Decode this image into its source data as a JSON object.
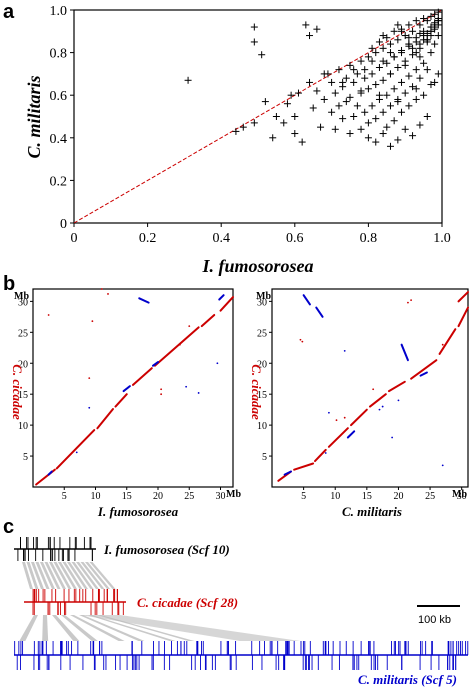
{
  "panels": {
    "a": "a",
    "b": "b",
    "c": "c"
  },
  "chart_data": [
    {
      "type": "scatter",
      "panel": "a",
      "title": "",
      "xlabel": "I. fumosorosea",
      "ylabel": "C. militaris",
      "xlim": [
        0,
        1.0
      ],
      "ylim": [
        0,
        1.0
      ],
      "xticks": [
        "0",
        "0.2",
        "0.4",
        "0.6",
        "0.8",
        "1.0"
      ],
      "yticks": [
        "0",
        "0.2",
        "0.4",
        "0.6",
        "0.8",
        "1.0"
      ],
      "marker": "plus",
      "color": "#000000",
      "diagonal_line": {
        "from": [
          0,
          0
        ],
        "to": [
          1,
          1
        ],
        "color": "#cc0000",
        "style": "dashed"
      },
      "grid": false,
      "x": [
        0.31,
        0.44,
        0.46,
        0.49,
        0.49,
        0.49,
        0.51,
        0.52,
        0.54,
        0.55,
        0.57,
        0.58,
        0.59,
        0.6,
        0.6,
        0.61,
        0.62,
        0.63,
        0.64,
        0.64,
        0.65,
        0.66,
        0.66,
        0.67,
        0.68,
        0.69,
        0.7,
        0.7,
        0.71,
        0.71,
        0.72,
        0.72,
        0.73,
        0.73,
        0.74,
        0.74,
        0.75,
        0.75,
        0.75,
        0.76,
        0.76,
        0.77,
        0.77,
        0.78,
        0.78,
        0.78,
        0.79,
        0.79,
        0.8,
        0.8,
        0.8,
        0.81,
        0.81,
        0.81,
        0.82,
        0.82,
        0.82,
        0.83,
        0.83,
        0.83,
        0.84,
        0.84,
        0.84,
        0.85,
        0.85,
        0.85,
        0.86,
        0.86,
        0.86,
        0.87,
        0.87,
        0.87,
        0.88,
        0.88,
        0.88,
        0.89,
        0.89,
        0.89,
        0.9,
        0.9,
        0.9,
        0.91,
        0.91,
        0.91,
        0.92,
        0.92,
        0.92,
        0.93,
        0.93,
        0.93,
        0.94,
        0.94,
        0.94,
        0.95,
        0.95,
        0.95,
        0.96,
        0.96,
        0.96,
        0.97,
        0.97,
        0.97,
        0.98,
        0.98,
        0.98,
        0.99,
        0.99,
        0.99,
        0.8,
        0.82,
        0.84,
        0.86,
        0.88,
        0.9,
        0.92,
        0.94,
        0.96,
        0.85,
        0.87,
        0.89,
        0.91,
        0.93,
        0.95,
        0.97,
        0.99,
        0.78,
        0.83,
        0.88,
        0.93,
        0.98,
        0.86,
        0.9,
        0.94,
        0.76,
        0.81,
        0.86,
        0.91,
        0.96,
        0.84,
        0.89,
        0.92,
        0.95,
        0.97,
        0.88,
        0.91,
        0.94,
        0.97,
        0.99,
        0.68,
        0.73,
        0.79,
        0.84,
        0.87,
        0.89,
        0.91,
        0.93,
        0.95,
        0.97,
        0.98,
        0.99,
        0.96,
        0.97,
        0.98,
        0.99,
        0.93,
        0.94,
        0.96,
        0.98
      ],
      "y": [
        0.67,
        0.43,
        0.45,
        0.47,
        0.92,
        0.85,
        0.79,
        0.57,
        0.4,
        0.5,
        0.47,
        0.56,
        0.6,
        0.42,
        0.5,
        0.61,
        0.38,
        0.93,
        0.66,
        0.88,
        0.54,
        0.62,
        0.91,
        0.45,
        0.58,
        0.7,
        0.52,
        0.66,
        0.44,
        0.61,
        0.55,
        0.72,
        0.49,
        0.64,
        0.57,
        0.68,
        0.42,
        0.59,
        0.74,
        0.5,
        0.66,
        0.55,
        0.7,
        0.44,
        0.61,
        0.76,
        0.52,
        0.68,
        0.47,
        0.63,
        0.78,
        0.55,
        0.7,
        0.82,
        0.49,
        0.65,
        0.8,
        0.58,
        0.73,
        0.85,
        0.52,
        0.67,
        0.82,
        0.6,
        0.75,
        0.87,
        0.55,
        0.7,
        0.84,
        0.63,
        0.78,
        0.9,
        0.58,
        0.73,
        0.86,
        0.66,
        0.8,
        0.91,
        0.61,
        0.76,
        0.88,
        0.69,
        0.83,
        0.93,
        0.64,
        0.79,
        0.9,
        0.72,
        0.85,
        0.95,
        0.68,
        0.82,
        0.93,
        0.75,
        0.88,
        0.96,
        0.72,
        0.86,
        0.95,
        0.8,
        0.9,
        0.97,
        0.84,
        0.92,
        0.98,
        0.88,
        0.95,
        0.99,
        0.4,
        0.38,
        0.42,
        0.36,
        0.39,
        0.44,
        0.41,
        0.46,
        0.5,
        0.45,
        0.48,
        0.52,
        0.55,
        0.58,
        0.6,
        0.65,
        0.7,
        0.62,
        0.6,
        0.57,
        0.63,
        0.66,
        0.7,
        0.74,
        0.78,
        0.72,
        0.76,
        0.8,
        0.84,
        0.86,
        0.88,
        0.9,
        0.82,
        0.86,
        0.9,
        0.93,
        0.87,
        0.89,
        0.92,
        0.95,
        0.7,
        0.66,
        0.72,
        0.76,
        0.78,
        0.81,
        0.84,
        0.87,
        0.9,
        0.92,
        0.94,
        0.96,
        0.85,
        0.88,
        0.91,
        0.93,
        0.8,
        0.84,
        0.89,
        0.93
      ]
    },
    {
      "type": "scatter",
      "panel": "b-left",
      "title": "",
      "xlabel": "I. fumosorosea",
      "ylabel": "C. cicadae",
      "x_unit": "Mb",
      "y_unit": "Mb",
      "xlim": [
        0,
        32
      ],
      "ylim": [
        0,
        32
      ],
      "xticks": [
        "5",
        "10",
        "15",
        "20",
        "25",
        "30"
      ],
      "yticks": [
        "5",
        "10",
        "15",
        "20",
        "25",
        "30"
      ],
      "grid": false,
      "series": [
        {
          "name": "",
          "color": "#cc0000",
          "segments": [
            [
              [
                0.5,
                0.4
              ],
              [
                3.5,
                2.8
              ]
            ],
            [
              [
                3.8,
                3.0
              ],
              [
                9.8,
                9.2
              ]
            ],
            [
              [
                10.3,
                9.5
              ],
              [
                12.8,
                12.6
              ]
            ],
            [
              [
                13.2,
                13.0
              ],
              [
                15.0,
                15.0
              ]
            ],
            [
              [
                16.0,
                16.5
              ],
              [
                19.0,
                19.2
              ]
            ],
            [
              [
                19.5,
                19.6
              ],
              [
                26.5,
                25.8
              ]
            ],
            [
              [
                27.0,
                26.0
              ],
              [
                29.0,
                27.8
              ]
            ],
            [
              [
                30.0,
                28.5
              ],
              [
                32.0,
                30.7
              ]
            ]
          ],
          "points": [
            [
              2.5,
              27.8
            ],
            [
              9.5,
              26.8
            ],
            [
              9.0,
              17.6
            ],
            [
              20.5,
              15.8
            ],
            [
              20.5,
              15.0
            ],
            [
              11.0,
              32.0
            ],
            [
              12.0,
              31.2
            ],
            [
              25.0,
              26.0
            ],
            [
              23.5,
              23.0
            ]
          ]
        },
        {
          "name": "",
          "color": "#0000cc",
          "segments": [
            [
              [
                2.5,
                2.0
              ],
              [
                3.0,
                2.5
              ]
            ],
            [
              [
                14.5,
                15.5
              ],
              [
                15.5,
                16.3
              ]
            ],
            [
              [
                19.2,
                19.6
              ],
              [
                20.0,
                20.2
              ]
            ],
            [
              [
                17.0,
                30.5
              ],
              [
                18.5,
                29.8
              ]
            ],
            [
              [
                29.8,
                30.3
              ],
              [
                30.5,
                31.0
              ]
            ]
          ],
          "points": [
            [
              29.5,
              20.0
            ],
            [
              7.0,
              5.6
            ],
            [
              9.0,
              12.8
            ],
            [
              24.5,
              16.2
            ],
            [
              26.5,
              15.2
            ]
          ]
        }
      ]
    },
    {
      "type": "scatter",
      "panel": "b-right",
      "title": "",
      "xlabel": "C. militaris",
      "ylabel": "C. cicadae",
      "x_unit": "Mb",
      "y_unit": "Mb",
      "xlim": [
        0,
        31
      ],
      "ylim": [
        0,
        32
      ],
      "xticks": [
        "5",
        "10",
        "15",
        "20",
        "25",
        "30"
      ],
      "yticks": [
        "5",
        "10",
        "15",
        "20",
        "25",
        "30"
      ],
      "grid": false,
      "series": [
        {
          "name": "",
          "color": "#cc0000",
          "segments": [
            [
              [
                1.0,
                1.0
              ],
              [
                3.0,
                2.5
              ]
            ],
            [
              [
                3.5,
                2.8
              ],
              [
                6.5,
                3.8
              ]
            ],
            [
              [
                6.8,
                4.2
              ],
              [
                8.5,
                6.0
              ]
            ],
            [
              [
                9.0,
                6.5
              ],
              [
                12.0,
                9.5
              ]
            ],
            [
              [
                12.5,
                10.0
              ],
              [
                15.0,
                12.5
              ]
            ],
            [
              [
                15.5,
                13.0
              ],
              [
                18.0,
                15.0
              ]
            ],
            [
              [
                18.5,
                15.5
              ],
              [
                21.0,
                17.0
              ]
            ],
            [
              [
                22.0,
                17.5
              ],
              [
                26.0,
                20.5
              ]
            ],
            [
              [
                26.5,
                21.5
              ],
              [
                29.0,
                25.5
              ]
            ],
            [
              [
                29.5,
                26.0
              ],
              [
                31.0,
                29.0
              ]
            ],
            [
              [
                29.5,
                30.0
              ],
              [
                31.0,
                31.5
              ]
            ]
          ],
          "points": [
            [
              4.5,
              23.8
            ],
            [
              4.8,
              23.5
            ],
            [
              10.2,
              10.8
            ],
            [
              11.5,
              11.2
            ],
            [
              21.5,
              29.8
            ],
            [
              22.0,
              30.2
            ],
            [
              27.0,
              23.0
            ],
            [
              16.0,
              15.8
            ]
          ]
        },
        {
          "name": "",
          "color": "#0000cc",
          "segments": [
            [
              [
                5.0,
                31.0
              ],
              [
                6.0,
                29.5
              ]
            ],
            [
              [
                7.0,
                29.0
              ],
              [
                8.0,
                27.5
              ]
            ],
            [
              [
                20.5,
                23.0
              ],
              [
                21.5,
                20.5
              ]
            ],
            [
              [
                12.0,
                8.0
              ],
              [
                13.0,
                9.0
              ]
            ],
            [
              [
                23.5,
                18.0
              ],
              [
                24.5,
                18.5
              ]
            ],
            [
              [
                2.0,
                2.0
              ],
              [
                3.0,
                2.5
              ]
            ]
          ],
          "points": [
            [
              11.5,
              22.0
            ],
            [
              17.0,
              12.5
            ],
            [
              17.5,
              13.0
            ],
            [
              19.0,
              8.0
            ],
            [
              20.0,
              14.0
            ],
            [
              27.0,
              3.5
            ],
            [
              9.0,
              12.0
            ],
            [
              8.5,
              5.5
            ]
          ]
        }
      ]
    }
  ],
  "synteny": {
    "tracks": [
      {
        "label": "I. fumosorosea (Scf 10)",
        "color": "#000000"
      },
      {
        "label": "C. cicadae (Scf 28)",
        "color": "#cc0000"
      },
      {
        "label": "C. militaris (Scf 5)",
        "color": "#0000cc"
      }
    ],
    "scale_bar": "100 kb",
    "link_color": "#bbbbbb"
  }
}
